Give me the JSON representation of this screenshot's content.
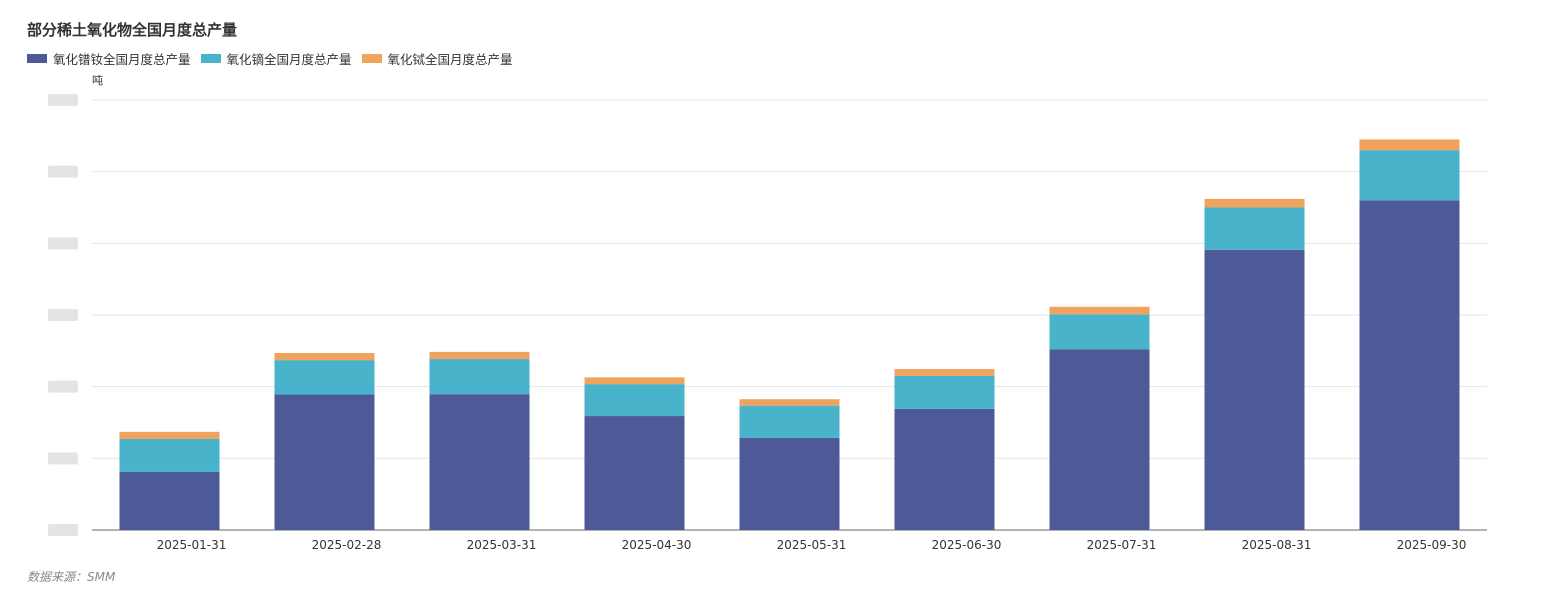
{
  "title": "部分稀土氧化物全国月度总产量",
  "unit": "吨",
  "source": "数据来源：SMM",
  "colors": {
    "series0": "#4e5998",
    "series1": "#48b3ca",
    "series2": "#f0a35c"
  },
  "chart_data": {
    "type": "bar",
    "stacked": true,
    "title": "部分稀土氧化物全国月度总产量",
    "ylabel": "吨",
    "ylim": [
      0,
      6000
    ],
    "ytick_values": [
      0,
      1000,
      2000,
      3000,
      4000,
      5000,
      6000
    ],
    "grid": true,
    "legend_position": "top-left",
    "categories": [
      "2025-01-31",
      "2025-02-28",
      "2025-03-31",
      "2025-04-30",
      "2025-05-31",
      "2025-06-30",
      "2025-07-31",
      "2025-08-31",
      "2025-09-30"
    ],
    "series": [
      {
        "name": "氧化镨钕全国月度总产量",
        "values": [
          810,
          1890,
          1895,
          1590,
          1285,
          1690,
          2520,
          3910,
          4600
        ]
      },
      {
        "name": "氧化镝全国月度总产量",
        "values": [
          460,
          480,
          490,
          445,
          450,
          460,
          490,
          590,
          700
        ]
      },
      {
        "name": "氧化铽全国月度总产量",
        "values": [
          100,
          100,
          100,
          95,
          90,
          95,
          105,
          120,
          150
        ]
      }
    ]
  }
}
